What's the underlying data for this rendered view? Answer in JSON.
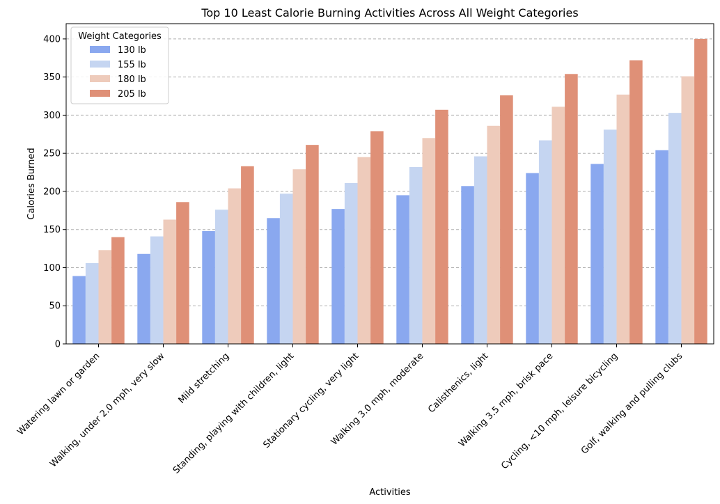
{
  "chart_data": {
    "type": "bar",
    "title": "Top 10 Least Calorie Burning Activities Across All Weight Categories",
    "xlabel": "Activities",
    "ylabel": "Calories Burned",
    "ylim": [
      0,
      420
    ],
    "yticks": [
      0,
      50,
      100,
      150,
      200,
      250,
      300,
      350,
      400
    ],
    "grid": "y-dashed",
    "legend": {
      "title": "Weight Categories",
      "placement": "top-left"
    },
    "categories": [
      "Watering lawn or garden",
      "Walking, under 2.0 mph, very slow",
      "Mild stretching",
      "Standing, playing with children, light",
      "Stationary cycling, very light",
      "Walking 3.0 mph, moderate",
      "Calisthenics, light",
      "Walking 3.5 mph, brisk pace",
      "Cycling, <10 mph, leisure bicycling",
      "Golf, walking and pulling clubs"
    ],
    "series": [
      {
        "name": "130 lb",
        "color": "#8aa8ef",
        "values": [
          89,
          118,
          148,
          165,
          177,
          195,
          207,
          224,
          236,
          254
        ]
      },
      {
        "name": "155 lb",
        "color": "#c5d5f1",
        "values": [
          106,
          141,
          176,
          197,
          211,
          232,
          246,
          267,
          281,
          303
        ]
      },
      {
        "name": "180 lb",
        "color": "#eecbbb",
        "values": [
          123,
          163,
          204,
          229,
          245,
          270,
          286,
          311,
          327,
          351
        ]
      },
      {
        "name": "205 lb",
        "color": "#df9077",
        "values": [
          140,
          186,
          233,
          261,
          279,
          307,
          326,
          354,
          372,
          400
        ]
      }
    ]
  }
}
